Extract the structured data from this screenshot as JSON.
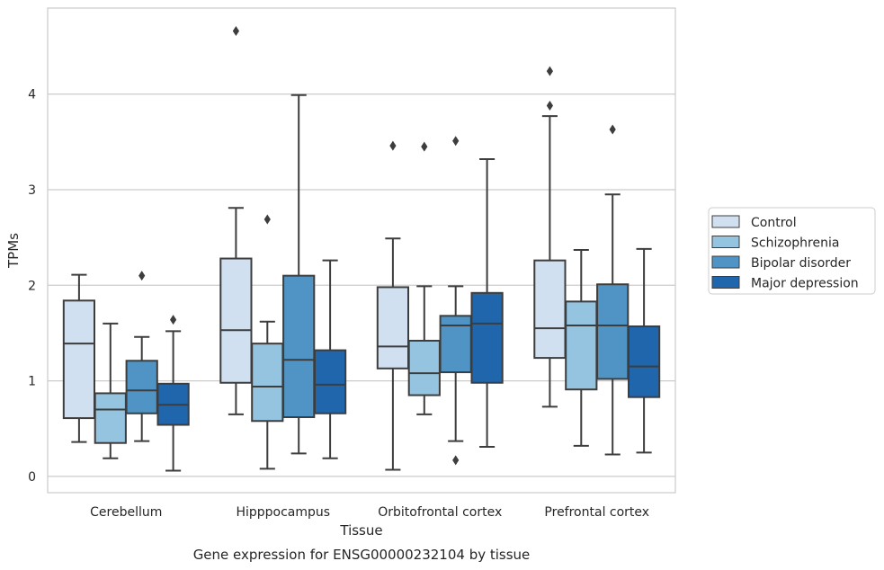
{
  "chart_data": {
    "type": "box",
    "title": "",
    "caption": "Gene expression for ENSG00000232104 by tissue",
    "xlabel": "Tissue",
    "ylabel": "TPMs",
    "ylim": [
      -0.17,
      4.9
    ],
    "yticks": [
      0,
      1,
      2,
      3,
      4
    ],
    "grid": "horizontal",
    "legend_position": "right",
    "categories": [
      "Cerebellum",
      "Hipppocampus",
      "Orbitofrontal cortex",
      "Prefrontal cortex"
    ],
    "series": [
      {
        "name": "Control",
        "color": "#d0e0f1",
        "boxes": [
          {
            "whisker_low": 0.36,
            "q1": 0.61,
            "median": 1.39,
            "q3": 1.84,
            "whisker_high": 2.11,
            "outliers": []
          },
          {
            "whisker_low": 0.65,
            "q1": 0.98,
            "median": 1.53,
            "q3": 2.28,
            "whisker_high": 2.81,
            "outliers": [
              4.66
            ]
          },
          {
            "whisker_low": 0.07,
            "q1": 1.13,
            "median": 1.36,
            "q3": 1.98,
            "whisker_high": 2.49,
            "outliers": [
              3.46
            ]
          },
          {
            "whisker_low": 0.73,
            "q1": 1.24,
            "median": 1.55,
            "q3": 2.26,
            "whisker_high": 3.77,
            "outliers": [
              3.88,
              4.24
            ]
          }
        ]
      },
      {
        "name": "Schizophrenia",
        "color": "#94c4df",
        "boxes": [
          {
            "whisker_low": 0.19,
            "q1": 0.35,
            "median": 0.7,
            "q3": 0.87,
            "whisker_high": 1.6,
            "outliers": []
          },
          {
            "whisker_low": 0.08,
            "q1": 0.58,
            "median": 0.94,
            "q3": 1.39,
            "whisker_high": 1.62,
            "outliers": [
              2.69
            ]
          },
          {
            "whisker_low": 0.65,
            "q1": 0.85,
            "median": 1.08,
            "q3": 1.42,
            "whisker_high": 1.99,
            "outliers": [
              3.45
            ]
          },
          {
            "whisker_low": 0.32,
            "q1": 0.91,
            "median": 1.58,
            "q3": 1.83,
            "whisker_high": 2.37,
            "outliers": []
          }
        ]
      },
      {
        "name": "Bipolar disorder",
        "color": "#4f94c4",
        "boxes": [
          {
            "whisker_low": 0.37,
            "q1": 0.66,
            "median": 0.9,
            "q3": 1.21,
            "whisker_high": 1.46,
            "outliers": [
              2.1
            ]
          },
          {
            "whisker_low": 0.24,
            "q1": 0.62,
            "median": 1.22,
            "q3": 2.1,
            "whisker_high": 3.99,
            "outliers": []
          },
          {
            "whisker_low": 0.37,
            "q1": 1.09,
            "median": 1.58,
            "q3": 1.68,
            "whisker_high": 1.99,
            "outliers": [
              0.17,
              3.51
            ]
          },
          {
            "whisker_low": 0.23,
            "q1": 1.02,
            "median": 1.58,
            "q3": 2.01,
            "whisker_high": 2.95,
            "outliers": [
              3.63
            ]
          }
        ]
      },
      {
        "name": "Major depression",
        "color": "#1f66ad",
        "boxes": [
          {
            "whisker_low": 0.06,
            "q1": 0.54,
            "median": 0.75,
            "q3": 0.97,
            "whisker_high": 1.52,
            "outliers": [
              1.64
            ]
          },
          {
            "whisker_low": 0.19,
            "q1": 0.66,
            "median": 0.96,
            "q3": 1.32,
            "whisker_high": 2.26,
            "outliers": []
          },
          {
            "whisker_low": 0.31,
            "q1": 0.98,
            "median": 1.6,
            "q3": 1.92,
            "whisker_high": 3.32,
            "outliers": []
          },
          {
            "whisker_low": 0.25,
            "q1": 0.83,
            "median": 1.15,
            "q3": 1.57,
            "whisker_high": 2.38,
            "outliers": []
          }
        ]
      }
    ]
  }
}
